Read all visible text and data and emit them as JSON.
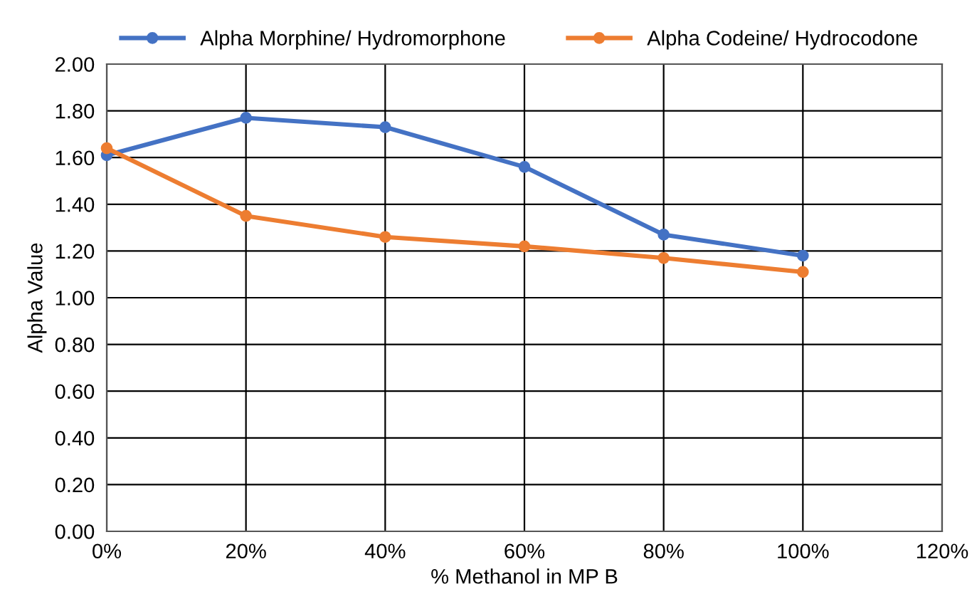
{
  "chart_data": {
    "type": "line",
    "xlabel": "% Methanol in MP B",
    "ylabel": "Alpha Value",
    "x": [
      0,
      20,
      40,
      60,
      80,
      100
    ],
    "series": [
      {
        "name": "Alpha Morphine/ Hydromorphone",
        "color": "#4472c4",
        "values": [
          1.61,
          1.77,
          1.73,
          1.56,
          1.27,
          1.18
        ]
      },
      {
        "name": "Alpha Codeine/ Hydrocodone",
        "color": "#ed7d31",
        "values": [
          1.64,
          1.35,
          1.26,
          1.22,
          1.17,
          1.11
        ]
      }
    ],
    "xlim": [
      0,
      120
    ],
    "xticks": [
      {
        "value": 0,
        "label": "0%"
      },
      {
        "value": 20,
        "label": "20%"
      },
      {
        "value": 40,
        "label": "40%"
      },
      {
        "value": 60,
        "label": "60%"
      },
      {
        "value": 80,
        "label": "80%"
      },
      {
        "value": 100,
        "label": "100%"
      },
      {
        "value": 120,
        "label": "120%"
      }
    ],
    "ylim": [
      0,
      2
    ],
    "yticks": [
      {
        "value": 0,
        "label": "0.00"
      },
      {
        "value": 0.2,
        "label": "0.20"
      },
      {
        "value": 0.4,
        "label": "0.40"
      },
      {
        "value": 0.6,
        "label": "0.60"
      },
      {
        "value": 0.8,
        "label": "0.80"
      },
      {
        "value": 1.0,
        "label": "1.00"
      },
      {
        "value": 1.2,
        "label": "1.20"
      },
      {
        "value": 1.4,
        "label": "1.40"
      },
      {
        "value": 1.6,
        "label": "1.60"
      },
      {
        "value": 1.8,
        "label": "1.80"
      },
      {
        "value": 2.0,
        "label": "2.00"
      }
    ],
    "grid": true,
    "legend": "top",
    "marker": "circle",
    "line_style": "solid"
  }
}
